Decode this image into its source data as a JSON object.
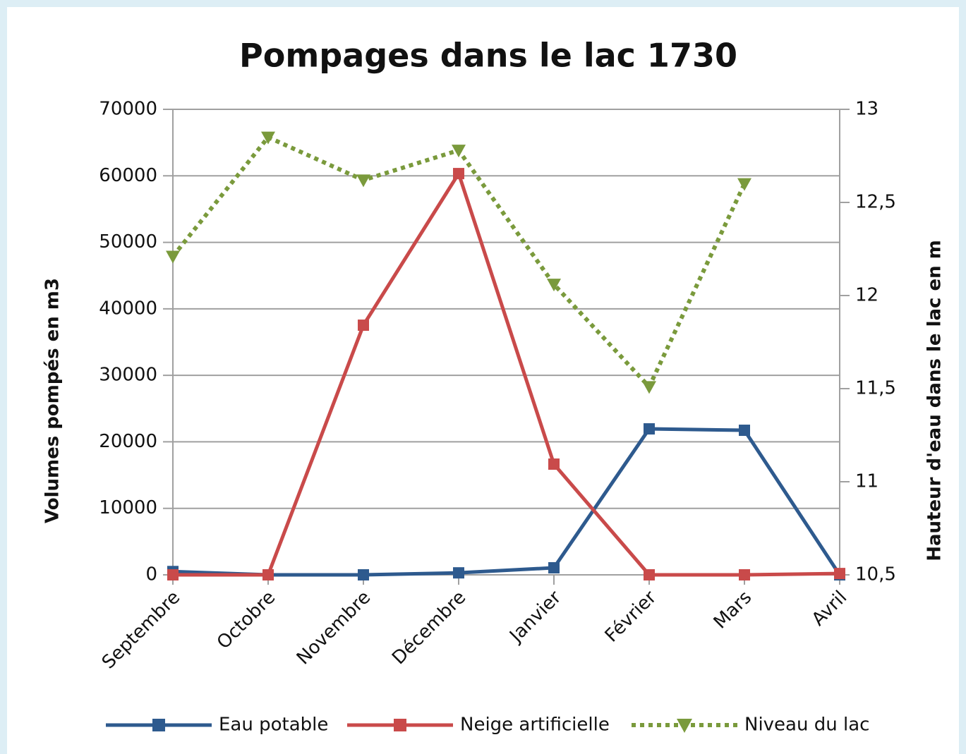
{
  "chart_data": {
    "type": "line",
    "title": "Pompages dans le lac 1730",
    "categories": [
      "Septembre",
      "Octobre",
      "Novembre",
      "Décembre",
      "Janvier",
      "Février",
      "Mars",
      "Avril"
    ],
    "series": [
      {
        "name": "Eau potable",
        "color": "#2e5a8e",
        "marker": "square",
        "values": [
          500,
          0,
          0,
          300,
          1060,
          21950,
          21740,
          0
        ]
      },
      {
        "name": "Neige artificielle",
        "color": "#c94a4a",
        "marker": "square",
        "values": [
          0,
          0,
          37540,
          60340,
          16650,
          0,
          0,
          200
        ]
      },
      {
        "name": "Niveau du lac",
        "color": "#7a9a3c",
        "marker": "triangle-down",
        "dashed": true,
        "axis": "y2",
        "values": [
          12.21,
          12.85,
          12.62,
          12.78,
          12.06,
          11.51,
          12.6,
          null
        ]
      }
    ],
    "ylabel": "Volumes pompés en m3",
    "y2label": "Hauteur d'eau dans le lac en m",
    "ylim": [
      0,
      70000
    ],
    "yticks": [
      0,
      10000,
      20000,
      30000,
      40000,
      50000,
      60000,
      70000
    ],
    "y2lim": [
      10.5,
      13
    ],
    "y2ticks": [
      {
        "value": 10.5,
        "label": "10,5"
      },
      11,
      {
        "value": 11.5,
        "label": "11,5"
      },
      12,
      {
        "value": 12.5,
        "label": "12,5"
      },
      13
    ],
    "grid": true,
    "legend": "bottom"
  }
}
